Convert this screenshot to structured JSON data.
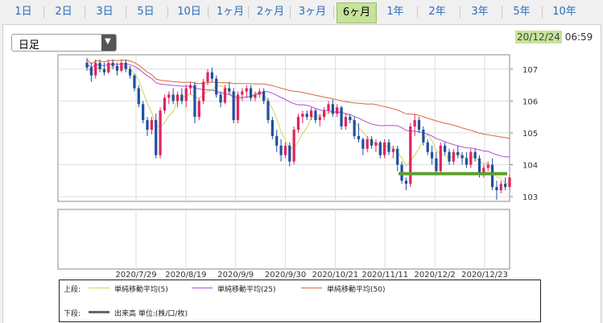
{
  "tabs": [
    "1日",
    "2日",
    "3日",
    "5日",
    "10日",
    "1ヶ月",
    "2ヶ月",
    "3ヶ月",
    "6ヶ月",
    "1年",
    "2年",
    "3年",
    "5年",
    "10年"
  ],
  "active_tab": "6ヶ月",
  "period_select": {
    "value": "日足"
  },
  "timestamp": {
    "date": "20/12/24",
    "time": "06:59"
  },
  "legend": {
    "upper_label": "上段:",
    "lower_label": "下段:",
    "items": [
      {
        "label": "単純移動平均(5)",
        "color": "#c8d85a"
      },
      {
        "label": "単純移動平均(25)",
        "color": "#b44fd8"
      },
      {
        "label": "単純移動平均(50)",
        "color": "#d96a3a"
      }
    ],
    "volume": {
      "label": "出来高 単位:(株/口/枚)",
      "color": "#666666"
    }
  },
  "colors": {
    "up": "#e0245e",
    "down": "#1f4fa0",
    "support_line": "#5aa02c"
  },
  "chart_data": {
    "type": "candlestick",
    "x_tick_labels": [
      "2020/7/29",
      "2020/8/19",
      "2020/9/9",
      "2020/9/30",
      "2020/10/21",
      "2020/11/11",
      "2020/12/2",
      "2020/12/23"
    ],
    "y_tick_labels": [
      "107",
      "106",
      "105",
      "104",
      "103"
    ],
    "ylim": [
      102.85,
      107.45
    ],
    "grid": true,
    "support_level": 103.72,
    "candles": [
      [
        107.2,
        107.35,
        106.95,
        107.05
      ],
      [
        107.05,
        107.2,
        106.6,
        106.8
      ],
      [
        106.8,
        107.3,
        106.7,
        107.2
      ],
      [
        107.2,
        107.3,
        106.9,
        107.0
      ],
      [
        107.0,
        107.2,
        106.8,
        106.9
      ],
      [
        106.9,
        107.3,
        106.85,
        107.2
      ],
      [
        107.2,
        107.3,
        107.0,
        107.1
      ],
      [
        107.1,
        107.2,
        106.8,
        106.95
      ],
      [
        106.95,
        107.3,
        106.9,
        107.2
      ],
      [
        107.2,
        107.3,
        106.9,
        107.0
      ],
      [
        107.0,
        107.1,
        106.7,
        106.8
      ],
      [
        106.8,
        106.85,
        106.3,
        106.4
      ],
      [
        106.4,
        106.5,
        105.8,
        105.9
      ],
      [
        105.9,
        106.0,
        105.3,
        105.4
      ],
      [
        105.4,
        105.5,
        104.9,
        105.1
      ],
      [
        105.1,
        105.5,
        104.95,
        105.4
      ],
      [
        105.4,
        105.6,
        104.2,
        104.3
      ],
      [
        104.3,
        105.8,
        104.2,
        105.7
      ],
      [
        105.7,
        106.2,
        105.6,
        106.1
      ],
      [
        106.1,
        106.3,
        105.9,
        106.2
      ],
      [
        106.2,
        106.4,
        105.9,
        106.0
      ],
      [
        106.0,
        106.3,
        105.8,
        106.2
      ],
      [
        106.2,
        106.4,
        105.9,
        106.0
      ],
      [
        106.0,
        106.5,
        105.8,
        106.4
      ],
      [
        106.4,
        106.6,
        106.2,
        106.5
      ],
      [
        106.5,
        106.6,
        105.3,
        105.5
      ],
      [
        105.5,
        106.1,
        105.4,
        106.0
      ],
      [
        106.0,
        106.7,
        105.9,
        106.6
      ],
      [
        106.6,
        107.0,
        106.5,
        106.9
      ],
      [
        106.9,
        107.05,
        106.6,
        106.7
      ],
      [
        106.7,
        106.8,
        106.1,
        106.2
      ],
      [
        106.2,
        106.3,
        105.8,
        105.95
      ],
      [
        105.95,
        106.5,
        105.9,
        106.4
      ],
      [
        106.4,
        106.6,
        106.2,
        106.3
      ],
      [
        106.3,
        106.4,
        105.3,
        105.4
      ],
      [
        105.4,
        106.3,
        105.3,
        106.2
      ],
      [
        106.2,
        106.4,
        106.0,
        106.3
      ],
      [
        106.3,
        106.5,
        106.1,
        106.4
      ],
      [
        106.4,
        106.5,
        106.0,
        106.1
      ],
      [
        106.1,
        106.3,
        106.0,
        106.2
      ],
      [
        106.2,
        106.4,
        106.1,
        106.3
      ],
      [
        106.3,
        106.4,
        105.9,
        106.0
      ],
      [
        106.0,
        106.1,
        105.3,
        105.4
      ],
      [
        105.4,
        105.5,
        104.8,
        104.9
      ],
      [
        104.9,
        105.1,
        104.4,
        104.6
      ],
      [
        104.6,
        104.8,
        104.1,
        104.3
      ],
      [
        104.3,
        104.7,
        104.2,
        104.6
      ],
      [
        104.6,
        104.7,
        103.95,
        104.1
      ],
      [
        104.1,
        105.2,
        104.0,
        105.1
      ],
      [
        105.1,
        105.6,
        105.0,
        105.5
      ],
      [
        105.5,
        105.7,
        105.3,
        105.6
      ],
      [
        105.6,
        105.7,
        105.4,
        105.5
      ],
      [
        105.5,
        105.8,
        105.4,
        105.7
      ],
      [
        105.7,
        105.75,
        105.3,
        105.4
      ],
      [
        105.4,
        105.6,
        105.2,
        105.5
      ],
      [
        105.5,
        105.8,
        105.4,
        105.7
      ],
      [
        105.7,
        106.0,
        105.6,
        105.9
      ],
      [
        105.9,
        106.05,
        105.5,
        105.6
      ],
      [
        105.6,
        105.9,
        105.5,
        105.8
      ],
      [
        105.8,
        105.85,
        105.1,
        105.2
      ],
      [
        105.2,
        105.6,
        105.1,
        105.5
      ],
      [
        105.5,
        105.6,
        105.3,
        105.4
      ],
      [
        105.4,
        105.5,
        104.8,
        104.9
      ],
      [
        104.9,
        105.3,
        104.7,
        104.8
      ],
      [
        104.8,
        104.85,
        104.3,
        104.5
      ],
      [
        104.5,
        104.9,
        104.4,
        104.8
      ],
      [
        104.8,
        104.9,
        104.5,
        104.6
      ],
      [
        104.6,
        104.8,
        104.4,
        104.7
      ],
      [
        104.7,
        104.75,
        104.2,
        104.3
      ],
      [
        104.3,
        104.8,
        104.2,
        104.7
      ],
      [
        104.7,
        104.8,
        104.3,
        104.4
      ],
      [
        104.4,
        104.6,
        104.2,
        104.5
      ],
      [
        104.5,
        104.6,
        103.8,
        104.0
      ],
      [
        104.0,
        104.1,
        103.4,
        103.5
      ],
      [
        103.5,
        103.6,
        103.2,
        103.4
      ],
      [
        103.4,
        105.3,
        103.3,
        105.2
      ],
      [
        105.2,
        105.6,
        104.9,
        105.4
      ],
      [
        105.4,
        105.5,
        105.0,
        105.1
      ],
      [
        105.1,
        105.2,
        104.6,
        104.7
      ],
      [
        104.7,
        104.8,
        104.3,
        104.4
      ],
      [
        104.4,
        104.6,
        104.0,
        104.2
      ],
      [
        104.2,
        104.4,
        103.7,
        103.8
      ],
      [
        103.8,
        104.7,
        103.7,
        104.6
      ],
      [
        104.6,
        104.7,
        104.3,
        104.4
      ],
      [
        104.4,
        104.5,
        104.0,
        104.1
      ],
      [
        104.1,
        104.5,
        104.0,
        104.4
      ],
      [
        104.4,
        104.6,
        104.2,
        104.3
      ],
      [
        104.3,
        104.4,
        104.0,
        104.2
      ],
      [
        104.2,
        104.4,
        103.9,
        104.0
      ],
      [
        104.0,
        104.5,
        103.9,
        104.4
      ],
      [
        104.4,
        104.5,
        104.1,
        104.2
      ],
      [
        104.2,
        104.3,
        103.6,
        103.7
      ],
      [
        103.7,
        104.0,
        103.6,
        103.9
      ],
      [
        103.9,
        104.1,
        103.8,
        104.0
      ],
      [
        104.0,
        104.2,
        103.2,
        103.3
      ],
      [
        103.3,
        103.5,
        102.9,
        103.2
      ],
      [
        103.2,
        103.5,
        103.1,
        103.4
      ],
      [
        103.4,
        103.6,
        103.2,
        103.3
      ],
      [
        103.3,
        103.7,
        103.2,
        103.6
      ]
    ]
  }
}
